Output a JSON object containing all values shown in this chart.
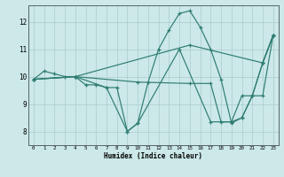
{
  "xlabel": "Humidex (Indice chaleur)",
  "background_color": "#cce8e8",
  "grid_color": "#aacccc",
  "line_color": "#2e7d72",
  "xlim": [
    -0.5,
    23.5
  ],
  "ylim": [
    7.5,
    12.6
  ],
  "xticks": [
    0,
    1,
    2,
    3,
    4,
    5,
    6,
    7,
    8,
    9,
    10,
    11,
    12,
    13,
    14,
    15,
    16,
    17,
    18,
    19,
    20,
    21,
    22,
    23
  ],
  "yticks": [
    8,
    9,
    10,
    11,
    12
  ],
  "series": [
    {
      "x": [
        0,
        1,
        2,
        3,
        4,
        5,
        6,
        7,
        8,
        9,
        10,
        11,
        12,
        13,
        14,
        15,
        16,
        17,
        18,
        19,
        20,
        21,
        22,
        23
      ],
      "y": [
        9.9,
        10.2,
        10.1,
        10.0,
        10.0,
        9.7,
        9.7,
        9.6,
        9.6,
        8.0,
        8.3,
        9.8,
        11.0,
        11.7,
        12.3,
        12.4,
        11.8,
        11.0,
        9.9,
        8.3,
        8.5,
        9.3,
        10.5,
        11.5
      ]
    },
    {
      "x": [
        0,
        4,
        15,
        22,
        23
      ],
      "y": [
        9.9,
        10.0,
        11.15,
        10.5,
        11.5
      ]
    },
    {
      "x": [
        0,
        4,
        10,
        15,
        17,
        18,
        19,
        20,
        21,
        22,
        23
      ],
      "y": [
        9.9,
        10.0,
        9.8,
        9.75,
        9.75,
        8.35,
        8.35,
        9.3,
        9.3,
        9.3,
        11.5
      ]
    },
    {
      "x": [
        0,
        4,
        7,
        9,
        10,
        14,
        17,
        19,
        20,
        21,
        22,
        23
      ],
      "y": [
        9.9,
        10.0,
        9.6,
        8.0,
        8.3,
        11.0,
        8.35,
        8.35,
        8.5,
        9.3,
        10.5,
        11.5
      ]
    }
  ]
}
